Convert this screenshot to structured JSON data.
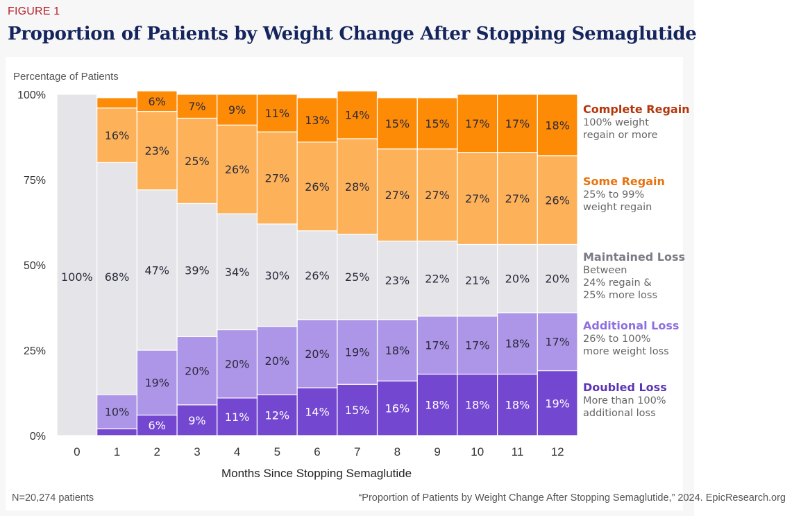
{
  "figure_label": "FIGURE 1",
  "title": "Proportion of Patients by Weight Change After Stopping Semaglutide",
  "footer": {
    "n": "N=20,274 patients",
    "source": "“Proportion of Patients by Weight Change After Stopping Semaglutide,” 2024. EpicResearch.org"
  },
  "legend": [
    {
      "name": "Complete Regain",
      "desc": "100% weight\nregain or more",
      "color": "#b5360b"
    },
    {
      "name": "Some Regain",
      "desc": "25% to 99%\nweight regain",
      "color": "#e8730e"
    },
    {
      "name": "Maintained Loss",
      "desc": "Between\n24% regain &\n25% more loss",
      "color": "#7b7b85"
    },
    {
      "name": "Additional Loss",
      "desc": "26% to 100%\nmore weight loss",
      "color": "#8f6fe0"
    },
    {
      "name": "Doubled Loss",
      "desc": "More than 100%\nadditional loss",
      "color": "#5b35b5"
    }
  ],
  "chart_data": {
    "type": "bar",
    "stacked": true,
    "ylabel": "Percentage of Patients",
    "xlabel": "Months Since Stopping Semaglutide",
    "ylim": [
      0,
      100
    ],
    "yticks": [
      "0%",
      "25%",
      "50%",
      "75%",
      "100%"
    ],
    "categories": [
      "0",
      "1",
      "2",
      "3",
      "4",
      "5",
      "6",
      "7",
      "8",
      "9",
      "10",
      "11",
      "12"
    ],
    "series": [
      {
        "name": "Doubled Loss",
        "color": "#7447d1",
        "label_color": "#ffffff",
        "values": [
          0,
          2,
          6,
          9,
          11,
          12,
          14,
          15,
          16,
          18,
          18,
          18,
          19
        ],
        "labels": [
          "",
          "",
          "6%",
          "9%",
          "11%",
          "12%",
          "14%",
          "15%",
          "16%",
          "18%",
          "18%",
          "18%",
          "19%"
        ]
      },
      {
        "name": "Additional Loss",
        "color": "#ad96e8",
        "label_color": "#2a2a3a",
        "values": [
          0,
          10,
          19,
          20,
          20,
          20,
          20,
          19,
          18,
          17,
          17,
          18,
          17
        ],
        "labels": [
          "",
          "10%",
          "19%",
          "20%",
          "20%",
          "20%",
          "20%",
          "19%",
          "18%",
          "17%",
          "17%",
          "18%",
          "17%"
        ]
      },
      {
        "name": "Maintained Loss",
        "color": "#e4e4e9",
        "label_color": "#2a2a3a",
        "values": [
          100,
          68,
          47,
          39,
          34,
          30,
          26,
          25,
          23,
          22,
          21,
          20,
          20
        ],
        "labels": [
          "100%",
          "68%",
          "47%",
          "39%",
          "34%",
          "30%",
          "26%",
          "25%",
          "23%",
          "22%",
          "21%",
          "20%",
          "20%"
        ]
      },
      {
        "name": "Some Regain",
        "color": "#fdb25a",
        "label_color": "#2a2a3a",
        "values": [
          0,
          16,
          23,
          25,
          26,
          27,
          26,
          28,
          27,
          27,
          27,
          27,
          26
        ],
        "labels": [
          "",
          "16%",
          "23%",
          "25%",
          "26%",
          "27%",
          "26%",
          "28%",
          "27%",
          "27%",
          "27%",
          "27%",
          "26%"
        ]
      },
      {
        "name": "Complete Regain",
        "color": "#fe8b06",
        "label_color": "#2a2a3a",
        "values": [
          0,
          3,
          6,
          7,
          9,
          11,
          13,
          14,
          15,
          15,
          17,
          17,
          18
        ],
        "labels": [
          "",
          "",
          "6%",
          "7%",
          "9%",
          "11%",
          "13%",
          "14%",
          "15%",
          "15%",
          "17%",
          "17%",
          "18%"
        ]
      }
    ]
  }
}
